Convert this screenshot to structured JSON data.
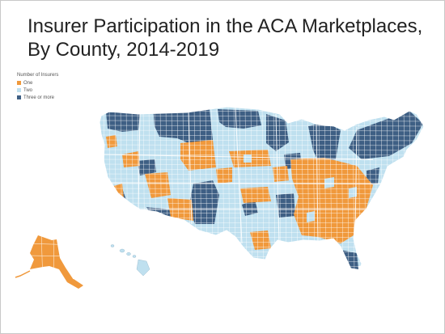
{
  "title": {
    "line1": "Insurer Participation in the ACA Marketplaces,",
    "line2": "By County, 2014-2019"
  },
  "legend": {
    "title": "Number of Insurers",
    "items": [
      {
        "label": "One",
        "color": "#f0993c"
      },
      {
        "label": "Two",
        "color": "#bfe0ef"
      },
      {
        "label": "Three or more",
        "color": "#3e5f84"
      }
    ]
  },
  "map": {
    "colors": {
      "one": "#f0993c",
      "two": "#bfe0ef",
      "three_or_more": "#3e5f84",
      "county_border": "#ffffff"
    },
    "region_names": [
      "contiguous-us",
      "alaska",
      "hawaii"
    ]
  }
}
